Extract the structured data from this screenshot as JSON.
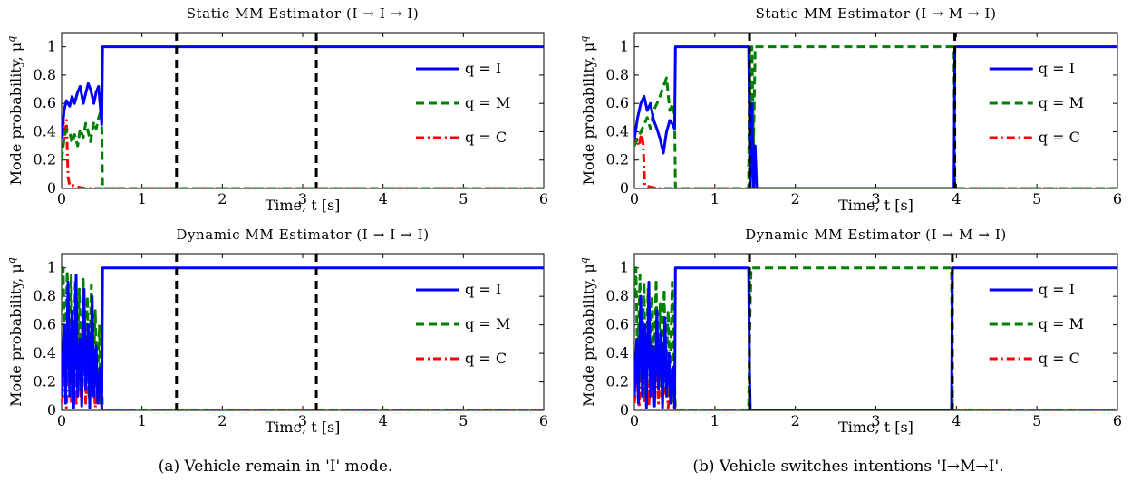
{
  "figure": {
    "captions": {
      "a": "(a) Vehicle remain in 'I' mode.",
      "b": "(b) Vehicle switches intentions 'I→M→I'."
    }
  },
  "chart_data": [
    {
      "id": "a-static",
      "type": "line",
      "title": "Static MM Estimator (I → I → I)",
      "xlabel": "Time, t [s]",
      "ylabel": "Mode probability, μ",
      "ylabel_sup": "q",
      "xlim": [
        0,
        6
      ],
      "ylim": [
        0,
        1.1
      ],
      "xticks": [
        0,
        1,
        2,
        3,
        4,
        5,
        6
      ],
      "yticks": [
        0,
        0.2,
        0.4,
        0.6,
        0.8,
        1
      ],
      "xtick_labels": [
        "0",
        "1",
        "2",
        "3",
        "4",
        "5",
        "6"
      ],
      "ytick_labels": [
        "0",
        "0.2",
        "0.4",
        "0.6",
        "0.8",
        "1"
      ],
      "legend_position": "right",
      "vlines": [
        1.43,
        3.17
      ],
      "vline_color": "#000000",
      "series": [
        {
          "name": "q = I",
          "color": "#0000ff",
          "dash": "solid",
          "x": [
            0,
            0.03,
            0.06,
            0.1,
            0.13,
            0.16,
            0.2,
            0.23,
            0.27,
            0.3,
            0.33,
            0.36,
            0.4,
            0.43,
            0.46,
            0.49,
            0.5,
            0.51,
            6
          ],
          "y": [
            0.35,
            0.55,
            0.62,
            0.58,
            0.65,
            0.6,
            0.68,
            0.72,
            0.6,
            0.67,
            0.74,
            0.7,
            0.6,
            0.68,
            0.72,
            0.52,
            0.45,
            1,
            1
          ]
        },
        {
          "name": "q = M",
          "color": "#008000",
          "dash": "dashed",
          "x": [
            0,
            0.03,
            0.06,
            0.1,
            0.13,
            0.16,
            0.2,
            0.23,
            0.27,
            0.3,
            0.33,
            0.36,
            0.4,
            0.43,
            0.46,
            0.49,
            0.5,
            0.51,
            6
          ],
          "y": [
            0.2,
            0.35,
            0.42,
            0.4,
            0.32,
            0.38,
            0.3,
            0.42,
            0.36,
            0.46,
            0.4,
            0.33,
            0.47,
            0.42,
            0.5,
            0.55,
            0.45,
            0,
            0
          ]
        },
        {
          "name": "q = C",
          "color": "#ff0000",
          "dash": "dashdot",
          "x": [
            0,
            0.02,
            0.04,
            0.06,
            0.08,
            0.1,
            0.15,
            0.2,
            0.3,
            6
          ],
          "y": [
            0.45,
            0.5,
            0.35,
            0.48,
            0.08,
            0.02,
            0.02,
            0.01,
            0,
            0
          ]
        }
      ]
    },
    {
      "id": "b-static",
      "type": "line",
      "title": "Static MM Estimator (I → M → I)",
      "xlabel": "Time, t [s]",
      "ylabel": "Mode probability, μ",
      "ylabel_sup": "q",
      "xlim": [
        0,
        6
      ],
      "ylim": [
        0,
        1.1
      ],
      "xticks": [
        0,
        1,
        2,
        3,
        4,
        5,
        6
      ],
      "yticks": [
        0,
        0.2,
        0.4,
        0.6,
        0.8,
        1
      ],
      "xtick_labels": [
        "0",
        "1",
        "2",
        "3",
        "4",
        "5",
        "6"
      ],
      "ytick_labels": [
        "0",
        "0.2",
        "0.4",
        "0.6",
        "0.8",
        "1"
      ],
      "legend_position": "right",
      "vlines": [
        1.43,
        3.98
      ],
      "vline_color": "#000000",
      "series": [
        {
          "name": "q = I",
          "color": "#0000ff",
          "dash": "solid",
          "x": [
            0,
            0.04,
            0.08,
            0.12,
            0.16,
            0.2,
            0.24,
            0.28,
            0.32,
            0.36,
            0.4,
            0.44,
            0.48,
            0.5,
            0.51,
            1.42,
            1.43,
            1.44,
            1.46,
            1.48,
            1.5,
            1.52,
            3.97,
            3.98,
            6
          ],
          "y": [
            0.35,
            0.5,
            0.6,
            0.65,
            0.55,
            0.6,
            0.48,
            0.42,
            0.35,
            0.25,
            0.4,
            0.48,
            0.45,
            0.42,
            1,
            1,
            0.5,
            0,
            0.6,
            0,
            0.3,
            0,
            0,
            1,
            1
          ]
        },
        {
          "name": "q = M",
          "color": "#008000",
          "dash": "dashed",
          "x": [
            0,
            0.04,
            0.08,
            0.12,
            0.16,
            0.2,
            0.24,
            0.28,
            0.32,
            0.36,
            0.4,
            0.44,
            0.48,
            0.5,
            0.51,
            1.42,
            1.43,
            1.44,
            1.46,
            1.48,
            1.5,
            1.52,
            3.97,
            3.98,
            6
          ],
          "y": [
            0.3,
            0.35,
            0.4,
            0.45,
            0.5,
            0.42,
            0.55,
            0.6,
            0.65,
            0.72,
            0.78,
            0.55,
            0.6,
            0.5,
            0,
            0,
            1,
            0.2,
            1,
            0.3,
            1,
            1,
            1,
            0,
            0
          ]
        },
        {
          "name": "q = C",
          "color": "#ff0000",
          "dash": "dashdot",
          "x": [
            0,
            0.03,
            0.06,
            0.09,
            0.11,
            0.13,
            0.2,
            0.3,
            6
          ],
          "y": [
            0.3,
            0.35,
            0.3,
            0.4,
            0.3,
            0.02,
            0.01,
            0,
            0
          ]
        }
      ]
    },
    {
      "id": "a-dynamic",
      "type": "line",
      "title": "Dynamic MM Estimator (I → I → I)",
      "xlabel": "Time, t [s]",
      "ylabel": "Mode probability, μ",
      "ylabel_sup": "q",
      "xlim": [
        0,
        6
      ],
      "ylim": [
        0,
        1.1
      ],
      "xticks": [
        0,
        1,
        2,
        3,
        4,
        5,
        6
      ],
      "yticks": [
        0,
        0.2,
        0.4,
        0.6,
        0.8,
        1
      ],
      "xtick_labels": [
        "0",
        "1",
        "2",
        "3",
        "4",
        "5",
        "6"
      ],
      "ytick_labels": [
        "0",
        "0.2",
        "0.4",
        "0.6",
        "0.8",
        "1"
      ],
      "legend_position": "right",
      "vlines": [
        1.43,
        3.17
      ],
      "vline_color": "#000000",
      "series": [
        {
          "name": "q = I",
          "color": "#0000ff",
          "dash": "solid",
          "x": [
            0,
            0.03,
            0.05,
            0.08,
            0.1,
            0.13,
            0.15,
            0.18,
            0.2,
            0.23,
            0.25,
            0.28,
            0.3,
            0.33,
            0.35,
            0.38,
            0.4,
            0.43,
            0.45,
            0.48,
            0.5,
            0.51,
            6
          ],
          "y": [
            0.1,
            0.6,
            0.05,
            0.9,
            0.1,
            0.7,
            0.02,
            0.95,
            0.1,
            0.5,
            0.03,
            0.85,
            0.15,
            0.6,
            0.02,
            0.8,
            0.1,
            0.45,
            0.05,
            0.3,
            0.02,
            1,
            1
          ]
        },
        {
          "name": "q = M",
          "color": "#008000",
          "dash": "dashed",
          "x": [
            0,
            0.02,
            0.04,
            0.07,
            0.09,
            0.12,
            0.14,
            0.17,
            0.19,
            0.22,
            0.24,
            0.27,
            0.29,
            0.32,
            0.34,
            0.37,
            0.39,
            0.42,
            0.44,
            0.47,
            0.49,
            0.5,
            0.51,
            6
          ],
          "y": [
            0.7,
            1,
            0.3,
            0.98,
            0.2,
            0.95,
            0.1,
            0.9,
            0.3,
            0.85,
            0.15,
            0.92,
            0.25,
            0.8,
            0.1,
            0.88,
            0.2,
            0.7,
            0.1,
            0.6,
            0.05,
            0.2,
            0,
            0
          ]
        },
        {
          "name": "q = C",
          "color": "#ff0000",
          "dash": "dashdot",
          "x": [
            0,
            0.03,
            0.06,
            0.09,
            0.12,
            0.15,
            0.18,
            0.21,
            0.24,
            0.27,
            0.3,
            0.33,
            0.36,
            0.39,
            0.42,
            0.45,
            0.48,
            0.51,
            6
          ],
          "y": [
            0.05,
            0.2,
            0.02,
            0.35,
            0.05,
            0.5,
            0.03,
            0.6,
            0.1,
            0.8,
            0.05,
            0.45,
            0.1,
            0.3,
            0.02,
            0.2,
            0.05,
            0,
            0
          ]
        }
      ]
    },
    {
      "id": "b-dynamic",
      "type": "line",
      "title": "Dynamic MM Estimator (I → M → I)",
      "xlabel": "Time, t [s]",
      "ylabel": "Mode probability, μ",
      "ylabel_sup": "q",
      "xlim": [
        0,
        6
      ],
      "ylim": [
        0,
        1.1
      ],
      "xticks": [
        0,
        1,
        2,
        3,
        4,
        5,
        6
      ],
      "yticks": [
        0,
        0.2,
        0.4,
        0.6,
        0.8,
        1
      ],
      "xtick_labels": [
        "0",
        "1",
        "2",
        "3",
        "4",
        "5",
        "6"
      ],
      "ytick_labels": [
        "0",
        "0.2",
        "0.4",
        "0.6",
        "0.8",
        "1"
      ],
      "legend_position": "right",
      "vlines": [
        1.43,
        3.95
      ],
      "vline_color": "#000000",
      "series": [
        {
          "name": "q = I",
          "color": "#0000ff",
          "dash": "solid",
          "x": [
            0,
            0.03,
            0.05,
            0.08,
            0.1,
            0.13,
            0.15,
            0.18,
            0.2,
            0.23,
            0.25,
            0.28,
            0.3,
            0.33,
            0.35,
            0.38,
            0.4,
            0.43,
            0.45,
            0.48,
            0.5,
            0.51,
            1.42,
            1.43,
            1.44,
            3.94,
            3.95,
            6
          ],
          "y": [
            0.1,
            0.5,
            0.05,
            0.8,
            0.1,
            0.6,
            0.02,
            0.9,
            0.1,
            0.45,
            0.03,
            0.7,
            0.15,
            0.55,
            0.02,
            0.65,
            0.1,
            0.4,
            0.05,
            0.3,
            0.02,
            1,
            1,
            0.3,
            0,
            0,
            1,
            1
          ]
        },
        {
          "name": "q = M",
          "color": "#008000",
          "dash": "dashed",
          "x": [
            0,
            0.02,
            0.04,
            0.07,
            0.09,
            0.12,
            0.14,
            0.17,
            0.19,
            0.22,
            0.24,
            0.27,
            0.29,
            0.32,
            0.34,
            0.37,
            0.39,
            0.42,
            0.44,
            0.47,
            0.49,
            0.5,
            0.51,
            1.42,
            1.43,
            1.45,
            3.94,
            3.95,
            6
          ],
          "y": [
            0.8,
            1,
            0.3,
            0.95,
            0.2,
            0.9,
            0.1,
            0.85,
            0.3,
            0.8,
            0.15,
            0.92,
            0.25,
            0.75,
            0.1,
            0.85,
            0.2,
            0.7,
            0.1,
            0.9,
            0.05,
            0.2,
            0,
            0,
            0.5,
            1,
            1,
            0,
            0
          ]
        },
        {
          "name": "q = C",
          "color": "#ff0000",
          "dash": "dashdot",
          "x": [
            0,
            0.03,
            0.06,
            0.09,
            0.12,
            0.15,
            0.18,
            0.21,
            0.24,
            0.27,
            0.3,
            0.33,
            0.36,
            0.39,
            0.42,
            0.45,
            0.48,
            0.51,
            6
          ],
          "y": [
            0.05,
            0.25,
            0.02,
            0.4,
            0.05,
            0.3,
            0.03,
            0.5,
            0.1,
            0.35,
            0.05,
            0.45,
            0.1,
            0.25,
            0.02,
            0.2,
            0.05,
            0,
            0
          ]
        }
      ]
    }
  ]
}
